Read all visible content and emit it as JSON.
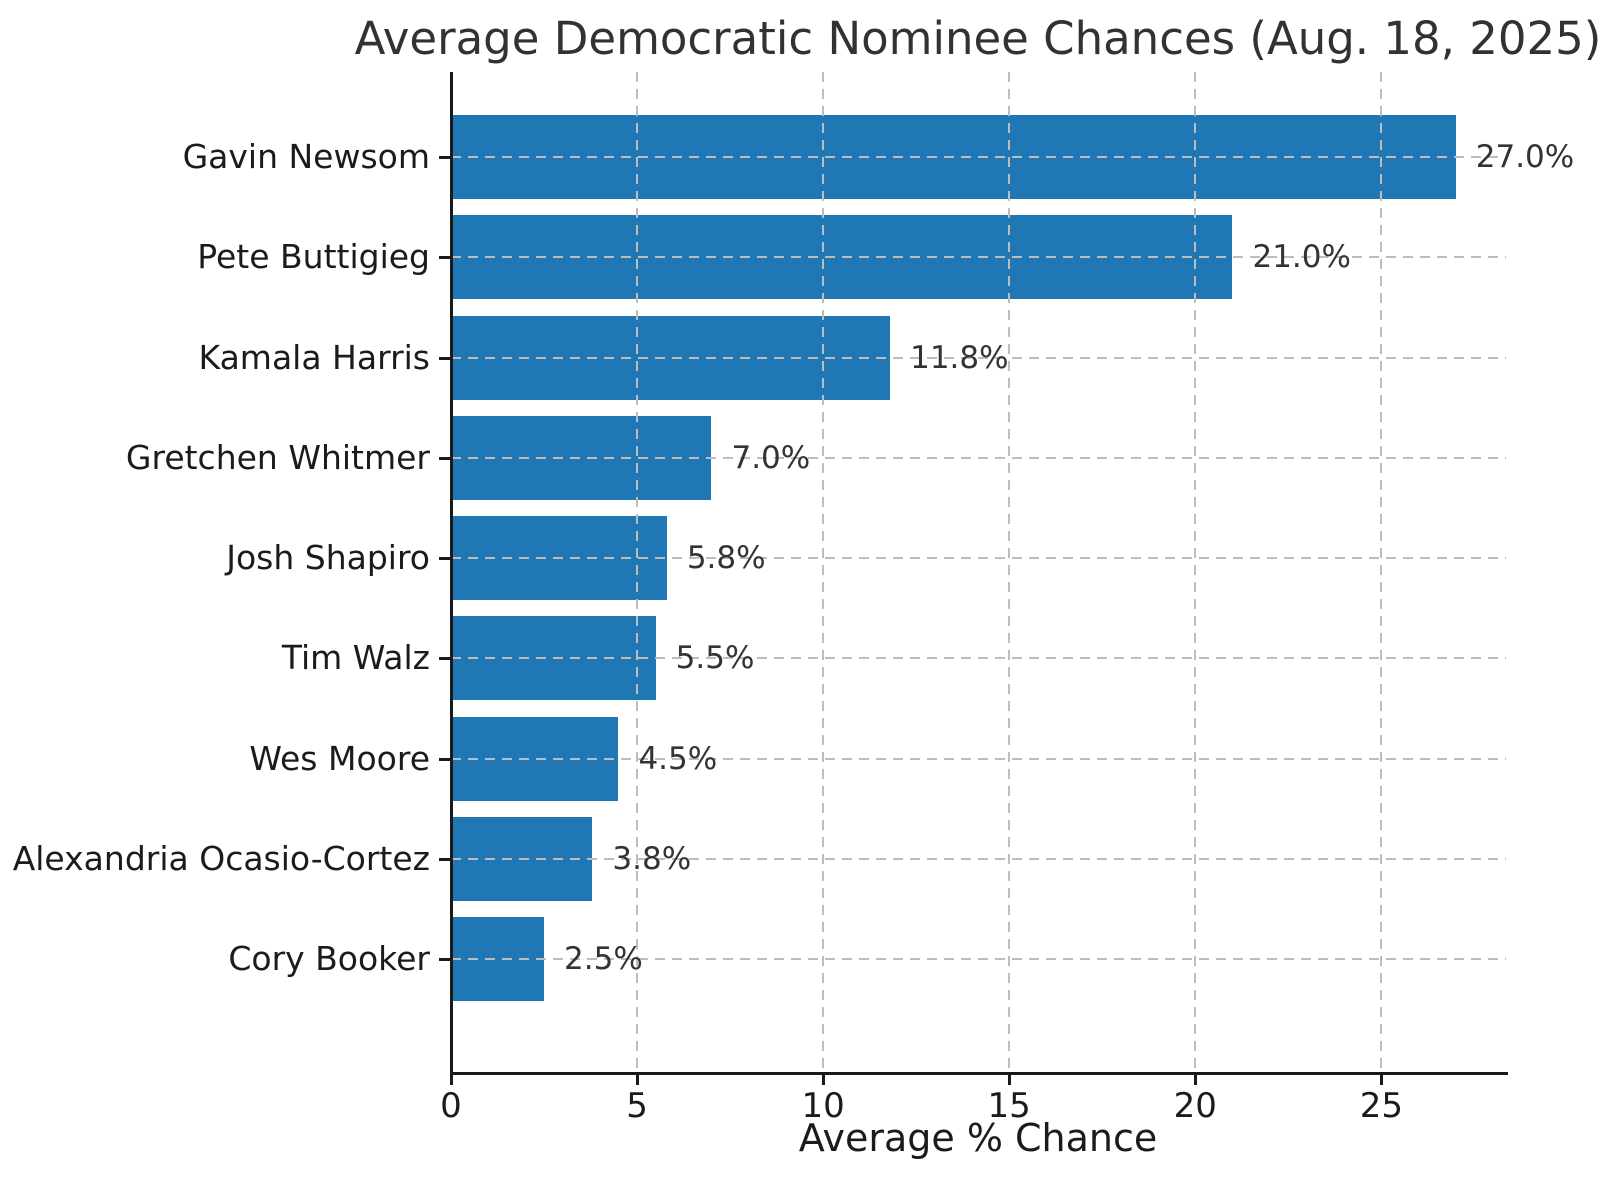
{
  "chart_data": {
    "type": "bar",
    "orientation": "horizontal",
    "title": "Average Democratic Nominee Chances (Aug. 18, 2025)",
    "xlabel": "Average % Chance",
    "ylabel": "",
    "categories": [
      "Gavin Newsom",
      "Pete Buttigieg",
      "Kamala Harris",
      "Gretchen Whitmer",
      "Josh Shapiro",
      "Tim Walz",
      "Wes Moore",
      "Alexandria Ocasio-Cortez",
      "Cory Booker"
    ],
    "values": [
      27.0,
      21.0,
      11.8,
      7.0,
      5.8,
      5.5,
      4.5,
      3.8,
      2.5
    ],
    "value_labels": [
      "27.0%",
      "21.0%",
      "11.8%",
      "7.0%",
      "5.8%",
      "5.5%",
      "4.5%",
      "3.8%",
      "2.5%"
    ],
    "x_ticks": [
      0,
      5,
      10,
      15,
      20,
      25
    ],
    "xlim": [
      0,
      28.35
    ],
    "grid": "dashed-both-axes-above-bars",
    "legend": "none"
  },
  "style": {
    "bar_color": "#1f77b4",
    "grid_color": "#bdbdbd",
    "spine_color": "#1a1a1a",
    "text_color": "#1b1b1b",
    "value_label_color": "#333333",
    "title_color": "#323232",
    "background": "#ffffff"
  }
}
